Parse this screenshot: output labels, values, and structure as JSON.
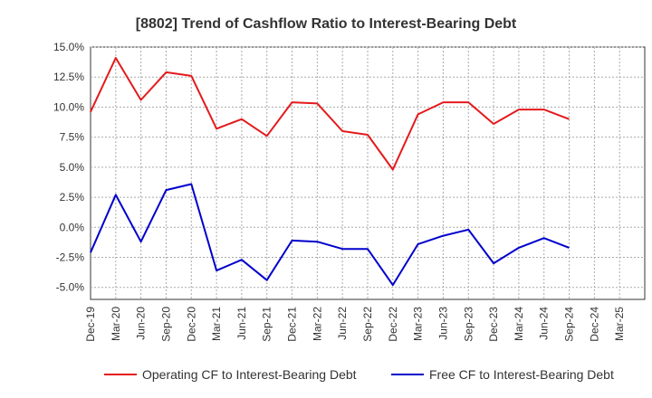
{
  "chart_data": {
    "type": "line",
    "title": "[8802]  Trend of Cashflow Ratio to Interest-Bearing Debt",
    "xlabel": "",
    "ylabel": "",
    "categories": [
      "Dec-19",
      "Mar-20",
      "Jun-20",
      "Sep-20",
      "Dec-20",
      "Mar-21",
      "Jun-21",
      "Sep-21",
      "Dec-21",
      "Mar-22",
      "Jun-22",
      "Sep-22",
      "Dec-22",
      "Mar-23",
      "Jun-23",
      "Sep-23",
      "Dec-23",
      "Mar-24",
      "Jun-24",
      "Sep-24",
      "Dec-24",
      "Mar-25"
    ],
    "ylim": [
      -6.0,
      15.0
    ],
    "yticks": [
      15.0,
      12.5,
      10.0,
      7.5,
      5.0,
      2.5,
      0.0,
      -2.5,
      -5.0
    ],
    "ytick_labels": [
      "15.0%",
      "12.5%",
      "10.0%",
      "7.5%",
      "5.0%",
      "2.5%",
      "0.0%",
      "-2.5%",
      "-5.0%"
    ],
    "grid": true,
    "legend_position": "bottom",
    "series": [
      {
        "name": "Operating CF to Interest-Bearing Debt",
        "color": "#e41a1c",
        "values": [
          9.6,
          14.1,
          10.6,
          12.9,
          12.6,
          8.2,
          9.0,
          7.6,
          10.4,
          10.3,
          8.0,
          7.7,
          4.8,
          9.4,
          10.4,
          10.4,
          8.6,
          9.8,
          9.8,
          9.0,
          null,
          null
        ]
      },
      {
        "name": "Free CF to Interest-Bearing Debt",
        "color": "#0000cc",
        "values": [
          -2.1,
          2.7,
          -1.2,
          3.1,
          3.6,
          -3.6,
          -2.7,
          -4.4,
          -1.1,
          -1.2,
          -1.8,
          -1.8,
          -4.8,
          -1.4,
          -0.7,
          -0.2,
          -3.0,
          -1.7,
          -0.9,
          -1.7,
          null,
          null
        ]
      }
    ]
  }
}
